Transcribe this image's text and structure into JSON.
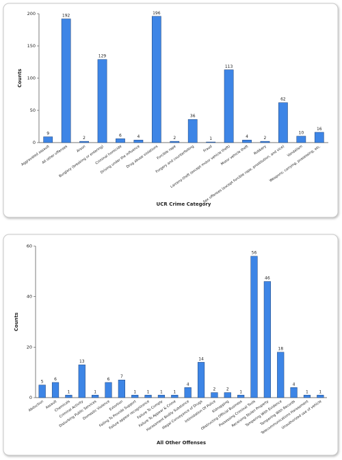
{
  "chart_data": [
    {
      "type": "bar",
      "ylabel": "Counts",
      "xlabel": "UCR Crime Category",
      "categories": [
        "Aggravated assault",
        "All other offenses",
        "Arson",
        "Burglary (breaking or entering)",
        "Criminal homicide",
        "Driving under the influence",
        "Drug abuse violations",
        "Forcible rape",
        "Forgery and counterfeiting",
        "Fraud",
        "Larceny-theft (except motor vehicle theft)",
        "Motor vehicle theft",
        "Robbery",
        "Sex offenses (except forcible rape, prostitution, and vice)",
        "Vandalism",
        "Weapons; carrying, possessing, etc."
      ],
      "values": [
        9,
        192,
        2,
        129,
        6,
        4,
        196,
        2,
        36,
        1,
        113,
        4,
        2,
        62,
        10,
        16
      ],
      "color": "#3d85e6",
      "ylim": [
        0,
        200
      ],
      "yticks": [
        0,
        50,
        100,
        150,
        200
      ]
    },
    {
      "type": "bar",
      "ylabel": "Counts",
      "xlabel": "All Other Offenses",
      "categories": [
        "Abduction",
        "Assault",
        "Chemicals",
        "Criminal Activity",
        "Disturbing Public Services",
        "Domestic Violence",
        "Extortion",
        "Failing To Provide Support",
        "Failure appear recognizance",
        "Failure To Comply",
        "Failure To Appear & Crime",
        "Harassment Bodily Substance",
        "Illegal Conveyance of Drugs",
        "Intimidation Of Police",
        "Kidnapping",
        "Obstructing Official Business",
        "Possessing Criminal Tools",
        "Receiving Stolen Property",
        "Tampering With Evidence",
        "Tampering With Records",
        "Telecommunications Harassment",
        "Unauthorized use of vehicle"
      ],
      "values": [
        5,
        6,
        1,
        13,
        1,
        6,
        7,
        1,
        1,
        1,
        1,
        4,
        14,
        2,
        2,
        1,
        56,
        46,
        18,
        4,
        1,
        1
      ],
      "color": "#3d85e6",
      "ylim": [
        0,
        60
      ],
      "yticks": [
        0,
        20,
        40,
        60
      ]
    }
  ]
}
